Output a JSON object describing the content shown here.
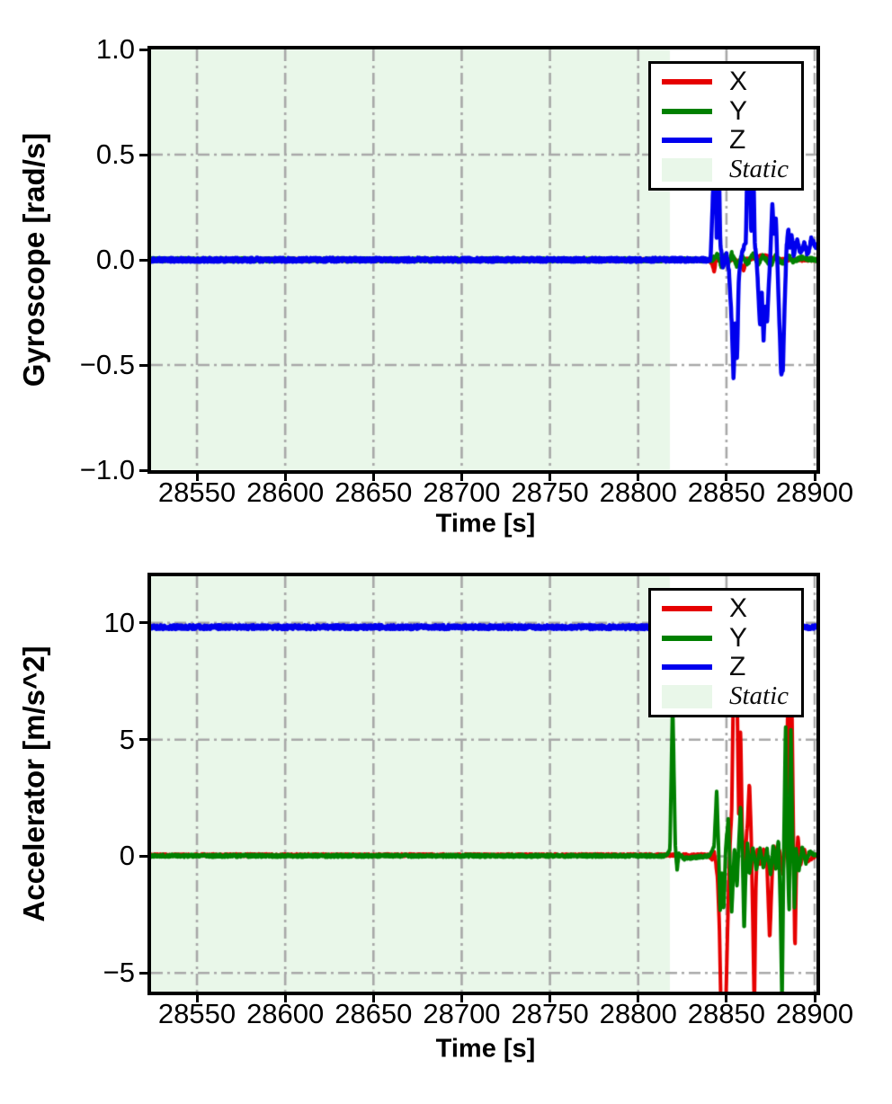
{
  "figure": {
    "background": "#ffffff"
  },
  "chart_data": [
    {
      "type": "line",
      "title": "",
      "xlabel": "Time [s]",
      "ylabel": "Gyroscope [rad/s]",
      "xlim": [
        28524,
        28901
      ],
      "ylim": [
        -1.0,
        1.0
      ],
      "xticks": {
        "values": [
          28550,
          28600,
          28650,
          28700,
          28750,
          28800,
          28850,
          28900
        ],
        "labels": [
          "28550",
          "28600",
          "28650",
          "28700",
          "28750",
          "28800",
          "28850",
          "28900"
        ]
      },
      "yticks": {
        "values": [
          1.0,
          0.5,
          0.0,
          -0.5,
          -1.0
        ],
        "labels": [
          "1.0",
          "0.5",
          "0.0",
          "−0.5",
          "−1.0"
        ]
      },
      "grid": {
        "on": true,
        "style": "dashdot",
        "color": "#a8a8a8"
      },
      "static_region": {
        "label": "Static",
        "start": 28524,
        "end": 28818,
        "color": "#e9f7e9"
      },
      "legend": {
        "position": "upper right",
        "static_label": "Static"
      },
      "series": [
        {
          "name": "X",
          "color": "#e60000",
          "width": 4,
          "noise": 0.006,
          "points": [
            [
              28524,
              0
            ],
            [
              28840,
              0
            ],
            [
              28842,
              -0.02
            ],
            [
              28843,
              -0.06
            ],
            [
              28844,
              0
            ],
            [
              28855,
              0
            ],
            [
              28858,
              -0.02
            ],
            [
              28860,
              -0.05
            ],
            [
              28861,
              0
            ],
            [
              28871,
              0.02
            ],
            [
              28880,
              0
            ],
            [
              28901,
              0
            ]
          ]
        },
        {
          "name": "Y",
          "color": "#008000",
          "width": 4,
          "noise": 0.009,
          "points": [
            [
              28524,
              0
            ],
            [
              28842,
              0
            ],
            [
              28845,
              0.03
            ],
            [
              28847,
              -0.03
            ],
            [
              28849,
              0.02
            ],
            [
              28851,
              -0.02
            ],
            [
              28853,
              0.03
            ],
            [
              28856,
              -0.03
            ],
            [
              28859,
              0.02
            ],
            [
              28862,
              -0.02
            ],
            [
              28865,
              0.03
            ],
            [
              28868,
              -0.02
            ],
            [
              28871,
              0.02
            ],
            [
              28875,
              -0.03
            ],
            [
              28878,
              0.02
            ],
            [
              28882,
              -0.02
            ],
            [
              28885,
              0.02
            ],
            [
              28888,
              -0.01
            ],
            [
              28892,
              0.01
            ],
            [
              28901,
              0
            ]
          ]
        },
        {
          "name": "Z",
          "color": "#0000ee",
          "width": 4.5,
          "noise": 0.01,
          "points": [
            [
              28524,
              0
            ],
            [
              28841,
              0
            ],
            [
              28842.5,
              0.35
            ],
            [
              28843.5,
              0.62
            ],
            [
              28844.5,
              0.08
            ],
            [
              28845.5,
              0.6
            ],
            [
              28846.5,
              0.08
            ],
            [
              28848,
              -0.04
            ],
            [
              28850,
              0.03
            ],
            [
              28851.5,
              -0.06
            ],
            [
              28853,
              -0.3
            ],
            [
              28854,
              -0.57
            ],
            [
              28855,
              -0.3
            ],
            [
              28856,
              -0.48
            ],
            [
              28857,
              -0.08
            ],
            [
              28859,
              0.04
            ],
            [
              28861,
              0.08
            ],
            [
              28862,
              0.55
            ],
            [
              28863,
              0.62
            ],
            [
              28864,
              0.1
            ],
            [
              28865,
              0.6
            ],
            [
              28866,
              0.08
            ],
            [
              28867,
              0.02
            ],
            [
              28868,
              -0.15
            ],
            [
              28869,
              -0.32
            ],
            [
              28870,
              -0.15
            ],
            [
              28871,
              -0.38
            ],
            [
              28872,
              -0.22
            ],
            [
              28873,
              -0.3
            ],
            [
              28874,
              -0.12
            ],
            [
              28875,
              0.05
            ],
            [
              28876,
              0.27
            ],
            [
              28877,
              0.12
            ],
            [
              28878,
              0.2
            ],
            [
              28879,
              -0.05
            ],
            [
              28880,
              -0.3
            ],
            [
              28881,
              -0.55
            ],
            [
              28882,
              -0.52
            ],
            [
              28883,
              -0.2
            ],
            [
              28884,
              0.05
            ],
            [
              28885,
              0.15
            ],
            [
              28886,
              0.05
            ],
            [
              28887,
              0.12
            ],
            [
              28888,
              0.02
            ],
            [
              28890,
              0.1
            ],
            [
              28892,
              0.03
            ],
            [
              28894,
              0.08
            ],
            [
              28896,
              0.02
            ],
            [
              28898,
              0.1
            ],
            [
              28901,
              0.06
            ]
          ]
        }
      ]
    },
    {
      "type": "line",
      "title": "",
      "xlabel": "Time [s]",
      "ylabel": "Accelerator [m/s^2]",
      "xlim": [
        28524,
        28901
      ],
      "ylim": [
        -5.8,
        12.0
      ],
      "xticks": {
        "values": [
          28550,
          28600,
          28650,
          28700,
          28750,
          28800,
          28850,
          28900
        ],
        "labels": [
          "28550",
          "28600",
          "28650",
          "28700",
          "28750",
          "28800",
          "28850",
          "28900"
        ]
      },
      "yticks": {
        "values": [
          10,
          5,
          0,
          -5
        ],
        "labels": [
          "10",
          "5",
          "0",
          "−5"
        ]
      },
      "grid": {
        "on": true,
        "style": "dashdot",
        "color": "#a8a8a8"
      },
      "static_region": {
        "label": "Static",
        "start": 28524,
        "end": 28818,
        "color": "#e9f7e9"
      },
      "legend": {
        "position": "upper right",
        "static_label": "Static"
      },
      "series": [
        {
          "name": "X",
          "color": "#e60000",
          "width": 4,
          "noise": 0.05,
          "points": [
            [
              28524,
              0.05
            ],
            [
              28840,
              0.05
            ],
            [
              28842,
              -0.15
            ],
            [
              28843,
              0.2
            ],
            [
              28844,
              -0.3
            ],
            [
              28845,
              -1.0
            ],
            [
              28846,
              -3.0
            ],
            [
              28847,
              -7.0
            ],
            [
              28849.5,
              -6.8
            ],
            [
              28851,
              -2.0
            ],
            [
              28852,
              0.5
            ],
            [
              28853,
              2.0
            ],
            [
              28854,
              7.6
            ],
            [
              28856,
              7.2
            ],
            [
              28857,
              1.5
            ],
            [
              28858,
              5.5
            ],
            [
              28859,
              0.8
            ],
            [
              28860,
              -0.5
            ],
            [
              28861,
              0.5
            ],
            [
              28862,
              1.5
            ],
            [
              28863,
              3.2
            ],
            [
              28864,
              1.0
            ],
            [
              28865,
              -3.0
            ],
            [
              28865.8,
              -6.6
            ],
            [
              28866.6,
              -1.5
            ],
            [
              28867.5,
              0.4
            ],
            [
              28869,
              -0.4
            ],
            [
              28871,
              0.3
            ],
            [
              28873,
              -0.4
            ],
            [
              28874.5,
              -3.6
            ],
            [
              28876,
              -0.6
            ],
            [
              28877,
              0.4
            ],
            [
              28878,
              -0.5
            ],
            [
              28880,
              0.3
            ],
            [
              28882,
              -0.8
            ],
            [
              28883.5,
              1.2
            ],
            [
              28885,
              7.4
            ],
            [
              28886,
              2.2
            ],
            [
              28887,
              7.0
            ],
            [
              28888,
              0.5
            ],
            [
              28888.8,
              -4.2
            ],
            [
              28889.6,
              -0.5
            ],
            [
              28890.5,
              0.8
            ],
            [
              28892,
              -0.4
            ],
            [
              28894,
              0.3
            ],
            [
              28896,
              -0.2
            ],
            [
              28901,
              0.05
            ]
          ]
        },
        {
          "name": "Y",
          "color": "#008000",
          "width": 4,
          "noise": 0.06,
          "points": [
            [
              28524,
              0.02
            ],
            [
              28816,
              0.02
            ],
            [
              28818,
              0.3
            ],
            [
              28819.5,
              6.8
            ],
            [
              28821,
              0.5
            ],
            [
              28822,
              -0.6
            ],
            [
              28823,
              0.1
            ],
            [
              28826,
              -0.1
            ],
            [
              28840,
              0.02
            ],
            [
              28843,
              0.4
            ],
            [
              28844.5,
              2.9
            ],
            [
              28845.5,
              0.4
            ],
            [
              28846.5,
              -2.5
            ],
            [
              28847.5,
              -0.6
            ],
            [
              28848.5,
              -2.3
            ],
            [
              28849.5,
              0.3
            ],
            [
              28851,
              1.6
            ],
            [
              28852,
              -0.4
            ],
            [
              28853,
              -2.4
            ],
            [
              28854.5,
              0.4
            ],
            [
              28856,
              -1.3
            ],
            [
              28857,
              0.5
            ],
            [
              28858,
              2.2
            ],
            [
              28859,
              0.3
            ],
            [
              28860,
              -3.3
            ],
            [
              28861,
              -0.5
            ],
            [
              28862,
              0.6
            ],
            [
              28863,
              -0.8
            ],
            [
              28865,
              0.4
            ],
            [
              28867,
              -0.6
            ],
            [
              28869,
              0.4
            ],
            [
              28871,
              -0.5
            ],
            [
              28873,
              0.3
            ],
            [
              28875,
              -0.8
            ],
            [
              28876.5,
              0.5
            ],
            [
              28878,
              -0.5
            ],
            [
              28879.5,
              0.8
            ],
            [
              28880.5,
              -2.0
            ],
            [
              28881.5,
              -6.4
            ],
            [
              28882.5,
              0.5
            ],
            [
              28883.5,
              5.7
            ],
            [
              28884.5,
              0.5
            ],
            [
              28885.5,
              -2.5
            ],
            [
              28886.5,
              5.5
            ],
            [
              28887.5,
              0.6
            ],
            [
              28888.5,
              -2.2
            ],
            [
              28889.5,
              0.3
            ],
            [
              28891,
              -0.7
            ],
            [
              28893,
              0.4
            ],
            [
              28895,
              -0.3
            ],
            [
              28897,
              0.2
            ],
            [
              28901,
              0.02
            ]
          ]
        },
        {
          "name": "Z",
          "color": "#0000ee",
          "width": 4.5,
          "noise": 0.09,
          "points": [
            [
              28524,
              9.82
            ],
            [
              28901,
              9.82
            ]
          ]
        }
      ]
    }
  ]
}
